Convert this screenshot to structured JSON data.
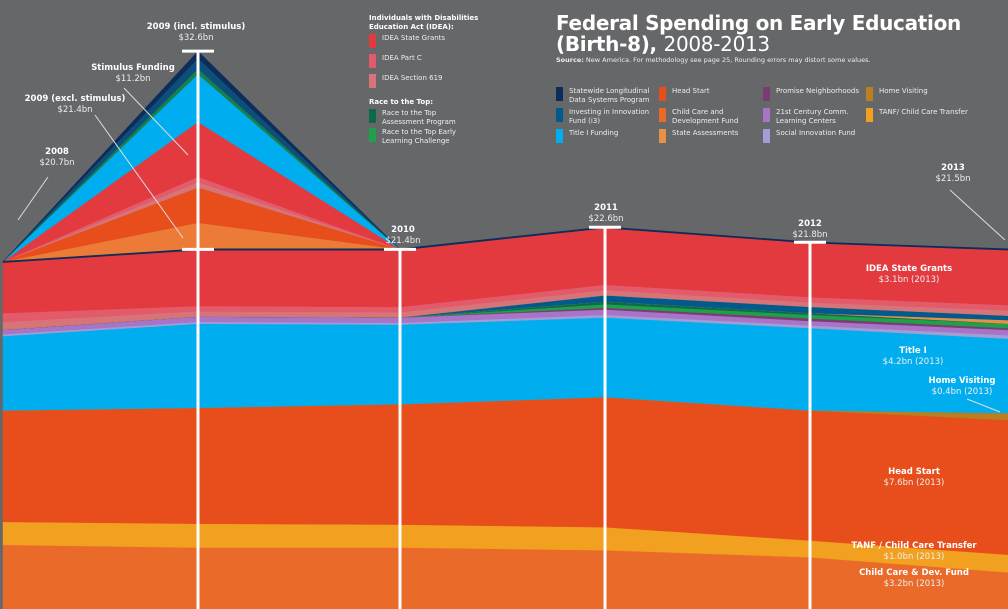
{
  "title": {
    "main": "Federal Spending on Early Education",
    "line2": "(Birth-8),",
    "years": "2008-2013"
  },
  "source": {
    "label": "Source:",
    "text": "New America. For methodology see page 25, Rounding errors may distort some values."
  },
  "legend": {
    "idea_heading": "Individuals with Disabilities Education Act (IDEA):",
    "rtt_heading": "Race to the Top:",
    "items": [
      {
        "label": "IDEA State Grants",
        "color": "#E23A3F"
      },
      {
        "label": "IDEA Part C",
        "color": "#E35A6B"
      },
      {
        "label": "IDEA Section 619",
        "color": "#D77478"
      },
      {
        "label": "Race to the Top Assessment Program",
        "color": "#0B6B48"
      },
      {
        "label": "Race to the Top Early Learning Challenge",
        "color": "#1FA04B"
      },
      {
        "label": "Statewide Longitudinal Data Systems Program",
        "color": "#0C2D5A"
      },
      {
        "label": "Investing in Innovation Fund (i3)",
        "color": "#005A8B"
      },
      {
        "label": "Title I Funding",
        "color": "#00AEEF"
      },
      {
        "label": "Head Start",
        "color": "#E84E1B"
      },
      {
        "label": "Child Care and Development Fund",
        "color": "#EA6A2A"
      },
      {
        "label": "State Assessments",
        "color": "#E99048"
      },
      {
        "label": "Promise Neighborhoods",
        "color": "#7A3D72"
      },
      {
        "label": "21st Century Comm. Learning Centers",
        "color": "#A874C7"
      },
      {
        "label": "Social Innovation Fund",
        "color": "#A19DD5"
      },
      {
        "label": "Home Visiting",
        "color": "#B97F20"
      },
      {
        "label": "TANF/ Child Care Transfer",
        "color": "#F2A01F"
      }
    ]
  },
  "year_labels": [
    {
      "year": "2008",
      "value": "$20.7bn"
    },
    {
      "year": "2009 (excl. stimulus)",
      "value": "$21.4bn"
    },
    {
      "year": "Stimulus Funding",
      "value": "$11.2bn"
    },
    {
      "year": "2009 (incl. stimulus)",
      "value": "$32.6bn"
    },
    {
      "year": "2010",
      "value": "$21.4bn"
    },
    {
      "year": "2011",
      "value": "$22.6bn"
    },
    {
      "year": "2012",
      "value": "$21.8bn"
    },
    {
      "year": "2013",
      "value": "$21.5bn"
    }
  ],
  "series_labels": [
    {
      "name": "IDEA State Grants",
      "value": "$3.1bn (2013)"
    },
    {
      "name": "Title I",
      "value": "$4.2bn (2013)"
    },
    {
      "name": "Home Visiting",
      "value": "$0.4bn (2013)"
    },
    {
      "name": "Head Start",
      "value": "$7.6bn (2013)"
    },
    {
      "name": "TANF / Child Care Transfer",
      "value": "$1.0bn (2013)"
    },
    {
      "name": "Child Care & Dev. Fund",
      "value": "$3.2bn (2013)"
    }
  ],
  "chart_data": {
    "type": "area",
    "stacked": true,
    "title": "Federal Spending on Early Education (Birth-8), 2008-2013",
    "x": [
      "2008",
      "2009",
      "2010",
      "2011",
      "2012",
      "2013"
    ],
    "unit": "$bn",
    "totals": {
      "2008": 20.7,
      "2009 (excl. stimulus)": 21.4,
      "2009 (incl. stimulus)": 32.6,
      "2010": 21.4,
      "2011": 22.6,
      "2012": 21.8,
      "2013": 21.5
    },
    "series": [
      {
        "name": "Child Care and Development Fund",
        "color": "#EA6A2A",
        "values": [
          4.75,
          4.6,
          4.6,
          4.45,
          4.05,
          3.2
        ]
      },
      {
        "name": "TANF/ Child Care Transfer",
        "color": "#F2A01F",
        "values": [
          1.3,
          1.35,
          1.3,
          1.3,
          0.95,
          1.0
        ]
      },
      {
        "name": "Head Start",
        "color": "#E84E1B",
        "values": [
          6.3,
          6.55,
          6.8,
          7.35,
          7.35,
          7.6
        ]
      },
      {
        "name": "Home Visiting",
        "color": "#B97F20",
        "values": [
          0,
          0,
          0,
          0,
          0,
          0.4
        ]
      },
      {
        "name": "Title I Funding",
        "color": "#00AEEF",
        "values": [
          4.2,
          4.75,
          4.5,
          4.5,
          4.65,
          4.2
        ]
      },
      {
        "name": "Social Innovation Fund",
        "color": "#A19DD5",
        "values": [
          0.1,
          0.1,
          0.1,
          0.15,
          0.15,
          0.2
        ]
      },
      {
        "name": "21st Century Comm. Learning Centers",
        "color": "#A874C7",
        "values": [
          0.25,
          0.3,
          0.3,
          0.3,
          0.25,
          0.3
        ]
      },
      {
        "name": "Promise Neighborhoods",
        "color": "#7A3D72",
        "values": [
          0,
          0,
          0,
          0.1,
          0.15,
          0.1
        ]
      },
      {
        "name": "Race to the Top Early Learning Challenge",
        "color": "#1FA04B",
        "values": [
          0,
          0,
          0,
          0.2,
          0.2,
          0.25
        ]
      },
      {
        "name": "Race to the Top Assessment Program",
        "color": "#0B6B48",
        "values": [
          0,
          0,
          0,
          0.15,
          0.1,
          0
        ]
      },
      {
        "name": "State Assessments",
        "color": "#E99048",
        "values": [
          0,
          0,
          0,
          0,
          0,
          0.2
        ]
      },
      {
        "name": "Investing in Innovation Fund (i3)",
        "color": "#005A8B",
        "values": [
          0,
          0,
          0,
          0.35,
          0.35,
          0.25
        ]
      },
      {
        "name": "IDEA Section 619",
        "color": "#D77478",
        "values": [
          0.45,
          0.3,
          0.3,
          0.3,
          0.25,
          0.3
        ]
      },
      {
        "name": "IDEA Part C",
        "color": "#E35A6B",
        "values": [
          0.5,
          0.3,
          0.3,
          0.3,
          0.3,
          0.3
        ]
      },
      {
        "name": "IDEA State Grants",
        "color": "#E23A3F",
        "values": [
          2.85,
          3.15,
          3.2,
          3.2,
          3.05,
          3.1
        ]
      },
      {
        "name": "Statewide Longitudinal Data Systems Program",
        "color": "#0C2D5A",
        "values": [
          0.05,
          0.05,
          0.05,
          0.05,
          0.05,
          0.05
        ]
      }
    ],
    "stimulus_2009": {
      "name": "Stimulus Funding",
      "total": 11.2,
      "components": [
        {
          "name": "Child Care and Development Fund",
          "color": "#EC7B38",
          "value": 1.5
        },
        {
          "name": "Head Start",
          "color": "#E84E1B",
          "value": 2.0
        },
        {
          "name": "IDEA Section 619",
          "color": "#D77478",
          "value": 0.3
        },
        {
          "name": "IDEA Part C",
          "color": "#E35A6B",
          "value": 0.3
        },
        {
          "name": "IDEA State Grants",
          "color": "#E23A3F",
          "value": 3.1
        },
        {
          "name": "Title I Funding",
          "color": "#00AEEF",
          "value": 2.7
        },
        {
          "name": "Race to the Top Early Learning Challenge",
          "color": "#1A7F4B",
          "value": 0.3
        },
        {
          "name": "Investing in Innovation Fund (i3)",
          "color": "#0D4F7A",
          "value": 0.6
        },
        {
          "name": "Statewide Longitudinal Data Systems Program",
          "color": "#0C2D5A",
          "value": 0.4
        }
      ]
    }
  }
}
